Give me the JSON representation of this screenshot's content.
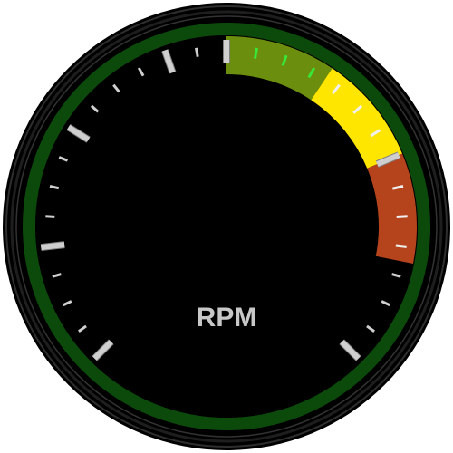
{
  "gauge": {
    "label": "RPM",
    "zones": [
      {
        "name": "green",
        "color": "#6b8e0e",
        "start_fraction": 0.5,
        "end_fraction": 0.625
      },
      {
        "name": "yellow",
        "color": "#ffe600",
        "start_fraction": 0.625,
        "end_fraction": 0.75
      },
      {
        "name": "red",
        "color": "#b5441c",
        "start_fraction": 0.75,
        "end_fraction": 0.875
      }
    ],
    "colors": {
      "bezel": "#1a1a1a",
      "bezel_highlight": "#3a3a3a",
      "ring": "#0c4a0c",
      "face": "#000000",
      "tick": "#cfcfcf",
      "tick_in_green_zone": "#39e639",
      "tick_in_yellow_zone": "#f0f0f0",
      "tick_in_red_zone": "#f0f0f0",
      "major_tick_outline": "#808080"
    }
  }
}
